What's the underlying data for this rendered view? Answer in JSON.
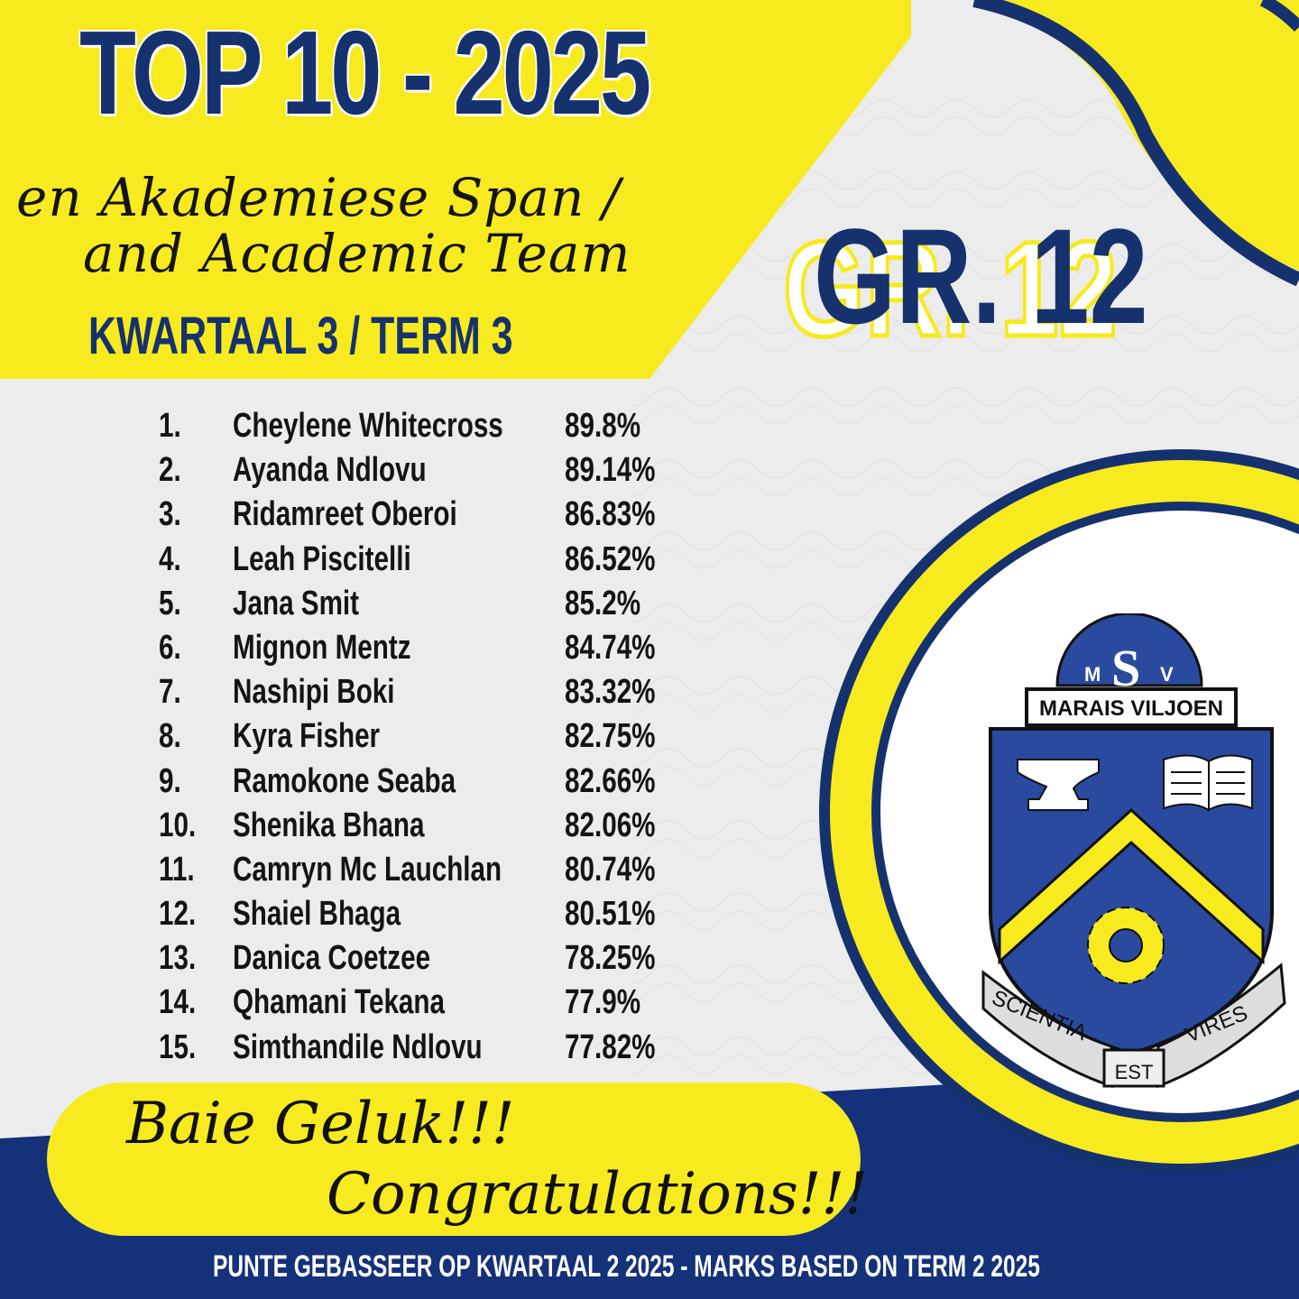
{
  "header": {
    "title": "TOP 10 - 2025",
    "subtitle_line1": "en Akademiese Span /",
    "subtitle_line2": "and Academic Team",
    "term": "KWARTAAL 3  / TERM 3",
    "grade": "GR. 12"
  },
  "rankings": [
    {
      "rank": "1.",
      "name": "Cheylene Whitecross",
      "score": "89.8%"
    },
    {
      "rank": "2.",
      "name": "Ayanda Ndlovu",
      "score": "89.14%"
    },
    {
      "rank": "3.",
      "name": "Ridamreet Oberoi",
      "score": "86.83%"
    },
    {
      "rank": "4.",
      "name": "Leah Piscitelli",
      "score": "86.52%"
    },
    {
      "rank": "5.",
      "name": "Jana Smit",
      "score": "85.2%"
    },
    {
      "rank": "6.",
      "name": "Mignon Mentz",
      "score": "84.74%"
    },
    {
      "rank": "7.",
      "name": "Nashipi Boki",
      "score": "83.32%"
    },
    {
      "rank": "8.",
      "name": "Kyra Fisher",
      "score": "82.75%"
    },
    {
      "rank": "9.",
      "name": "Ramokone Seaba",
      "score": "82.66%"
    },
    {
      "rank": "10.",
      "name": "Shenika Bhana",
      "score": "82.06%"
    },
    {
      "rank": "11.",
      "name": "Camryn Mc Lauchlan",
      "score": "80.74%"
    },
    {
      "rank": "12.",
      "name": "Shaiel Bhaga",
      "score": "80.51%"
    },
    {
      "rank": "13.",
      "name": "Danica Coetzee",
      "score": "78.25%"
    },
    {
      "rank": "14.",
      "name": "Qhamani Tekana",
      "score": "77.9%"
    },
    {
      "rank": "15.",
      "name": "Simthandile Ndlovu",
      "score": "77.82%"
    }
  ],
  "congrats": {
    "line1": "Baie Geluk!!!",
    "line2": "Congratulations!!!"
  },
  "footer": "PUNTE GEBASSEER OP  KWARTAAL 2 2025 - MARKS BASED ON TERM 2 2025",
  "crest": {
    "monogram_left": "M",
    "monogram_center": "S",
    "monogram_right": "V",
    "banner": "MARAIS VILJOEN",
    "motto_left": "SCIENTIA",
    "motto_center": "EST",
    "motto_right": "VIRES"
  },
  "colors": {
    "navy": "#16326e",
    "yellow": "#f7ea1f",
    "light_grey": "#ececec",
    "shield_blue": "#2a4aa0"
  }
}
